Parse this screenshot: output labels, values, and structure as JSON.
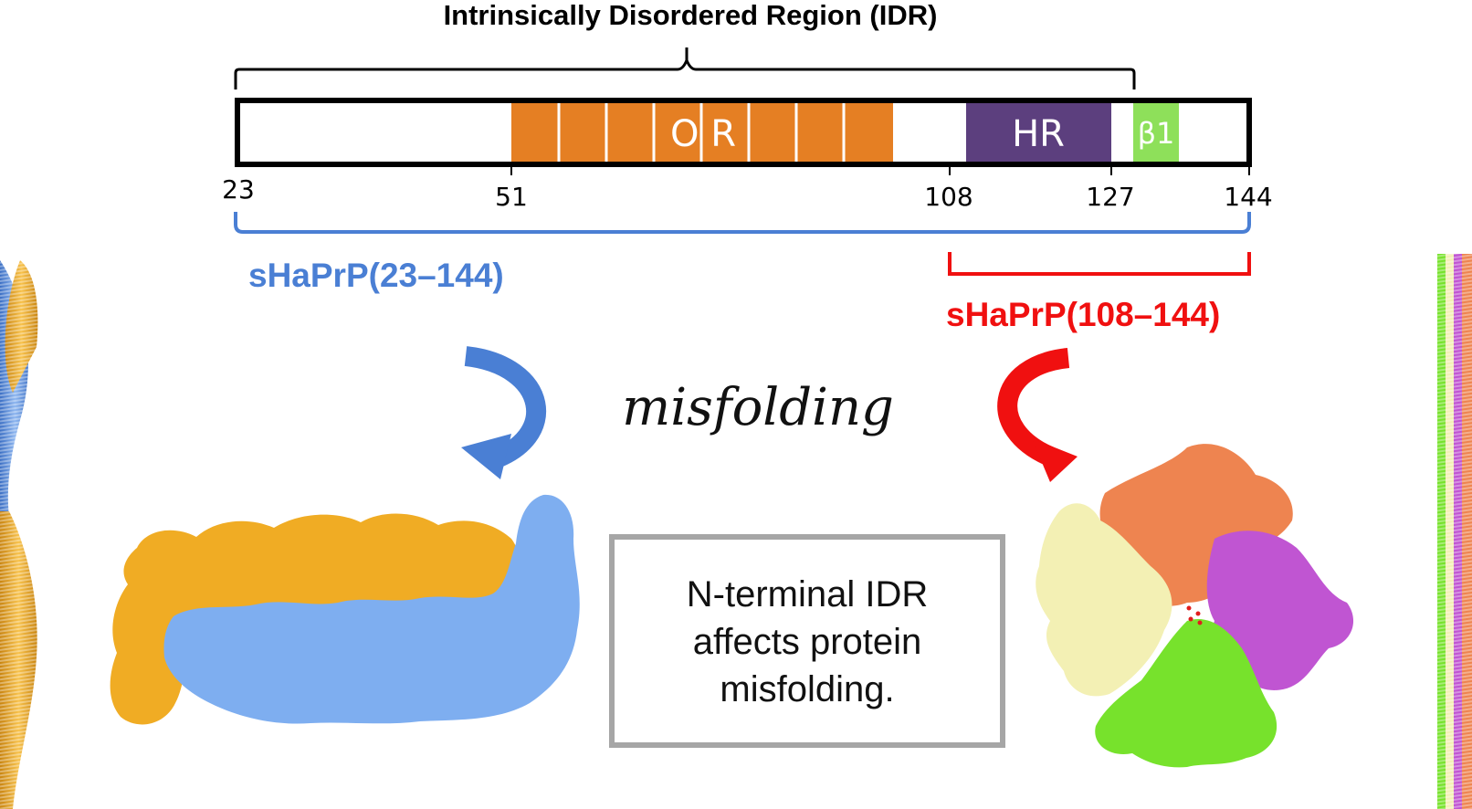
{
  "title": "Intrinsically Disordered Region (IDR)",
  "domain_bar": {
    "segments": {
      "or_label": "O R",
      "hr_label": "HR",
      "beta_label": "β1"
    },
    "ticks": [
      "23",
      "51",
      "108",
      "127",
      "144"
    ]
  },
  "constructs": {
    "full": {
      "label": "sHaPrP(23–144)",
      "color": "#4a7fd4"
    },
    "short": {
      "label": "sHaPrP(108–144)",
      "color": "#f01010"
    }
  },
  "process_label": "misfolding",
  "note_box": {
    "line1": "N-terminal IDR",
    "line2": "affects protein",
    "line3": "misfolding."
  },
  "colors": {
    "octarepeat": "#e57f23",
    "hydrophobic": "#5c3f7e",
    "beta1": "#8ee05a",
    "fibril_orange": "#f0ac24",
    "fibril_blue": "#7eaef0",
    "pale_yellow": "#f3f0b4",
    "salmon": "#ee8450",
    "magenta": "#c055d2",
    "green": "#77e22c",
    "box_border": "#a6a6a6"
  }
}
